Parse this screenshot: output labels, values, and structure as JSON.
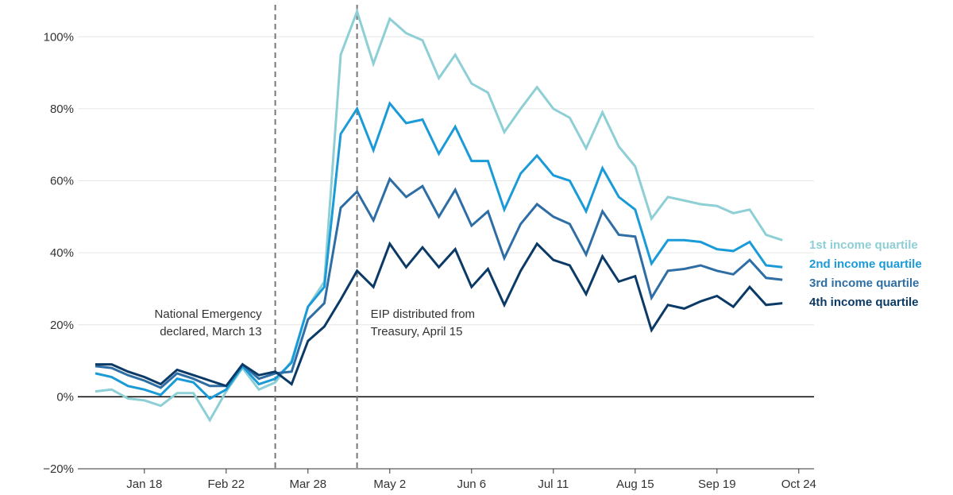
{
  "chart_data": {
    "type": "line",
    "title": "",
    "xlabel": "",
    "ylabel": "",
    "ylim": [
      -20,
      108
    ],
    "yticks": [
      -20,
      0,
      20,
      40,
      60,
      80,
      100
    ],
    "ytick_labels": [
      "−20%",
      "0%",
      "20%",
      "40%",
      "60%",
      "80%",
      "100%"
    ],
    "xlim": [
      0,
      45
    ],
    "x_tick_positions": [
      3,
      8,
      13,
      18,
      23,
      28,
      33,
      38,
      43
    ],
    "x_tick_labels": [
      "Jan 18",
      "Feb 22",
      "Mar 28",
      "May 2",
      "Jun 6",
      "Jul 11",
      "Aug 15",
      "Sep 19",
      "Oct 24"
    ],
    "grid": "horizontal",
    "zero_line": true,
    "markers": [
      {
        "x": 11,
        "lines": [
          "National Emergency",
          "declared, March 13"
        ],
        "align": "right"
      },
      {
        "x": 16,
        "lines": [
          "EIP distributed from",
          "Treasury, April 15"
        ],
        "align": "left"
      }
    ],
    "series": [
      {
        "name": "1st income quartile",
        "color": "#8dcfd5",
        "values": [
          1.5,
          2,
          -0.5,
          -1,
          -2.5,
          1,
          1,
          -6.5,
          1.5,
          8,
          2,
          4,
          10,
          25,
          32,
          95,
          107,
          92.5,
          105,
          101,
          99,
          88.5,
          95,
          87,
          84.5,
          73.5,
          80,
          86,
          80,
          77.5,
          69,
          79,
          69.5,
          64,
          49.5,
          55.5,
          54.5,
          53.5,
          53,
          51,
          52,
          45,
          43.5
        ]
      },
      {
        "name": "2nd income quartile",
        "color": "#1a9bd7",
        "values": [
          6.5,
          5.5,
          3,
          2,
          0.5,
          5,
          4,
          -0.5,
          2,
          8.5,
          3.5,
          5,
          9.5,
          25,
          30.5,
          73,
          80,
          68.5,
          81.5,
          76,
          77,
          67.5,
          75,
          65.5,
          65.5,
          52,
          62,
          67,
          61.5,
          60,
          51.5,
          63.5,
          55.5,
          52,
          37,
          43.5,
          43.5,
          43,
          41,
          40.5,
          43,
          36.5,
          36
        ]
      },
      {
        "name": "3rd income quartile",
        "color": "#2e6ea4",
        "values": [
          8.5,
          8,
          6,
          4.5,
          2.5,
          6.5,
          5,
          3,
          3,
          9,
          5,
          6.5,
          7,
          21.5,
          26,
          52.5,
          57,
          49,
          60.5,
          55.5,
          58.5,
          50,
          57.5,
          47.5,
          51.5,
          38.5,
          48,
          53.5,
          50,
          48,
          39.5,
          51.5,
          45,
          44.5,
          27.5,
          35,
          35.5,
          36.5,
          35,
          34,
          38,
          33,
          32.5
        ]
      },
      {
        "name": "4th income quartile",
        "color": "#0b3a66",
        "values": [
          9,
          9,
          7,
          5.5,
          3.5,
          7.5,
          6,
          4.5,
          3,
          9,
          6,
          7,
          3.5,
          15.5,
          19.5,
          27,
          35,
          30.5,
          42.5,
          36,
          41.5,
          36,
          41,
          30.5,
          35.5,
          25.5,
          35,
          42.5,
          38,
          36.5,
          28.5,
          39,
          32,
          33.5,
          18.5,
          25.5,
          24.5,
          26.5,
          28,
          25,
          30.5,
          25.5,
          26
        ]
      }
    ]
  }
}
